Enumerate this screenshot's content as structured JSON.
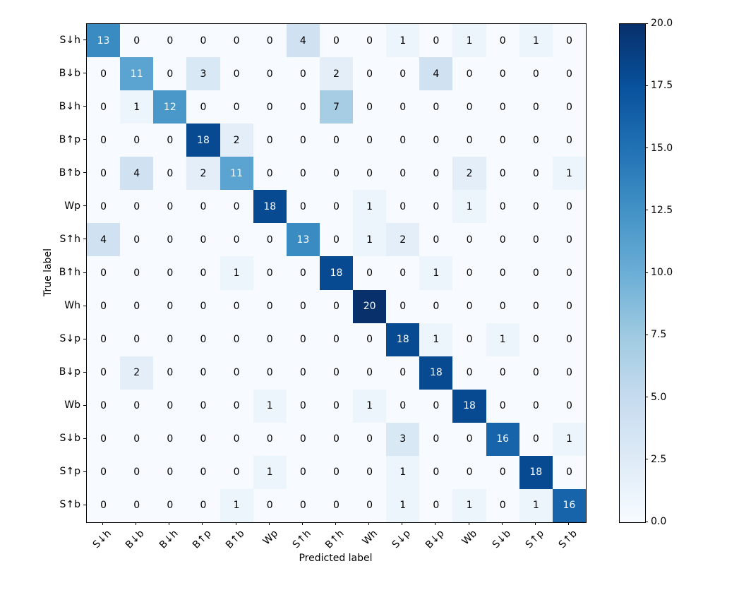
{
  "chart_data": {
    "type": "heatmap",
    "title": "",
    "xlabel": "Predicted label",
    "ylabel": "True label",
    "labels": [
      "S↓h",
      "B↓b",
      "B↓h",
      "B↑p",
      "B↑b",
      "Wp",
      "S↑h",
      "B↑h",
      "Wh",
      "S↓p",
      "B↓p",
      "Wb",
      "S↓b",
      "S↑p",
      "S↑b"
    ],
    "matrix": [
      [
        13,
        0,
        0,
        0,
        0,
        0,
        4,
        0,
        0,
        1,
        0,
        1,
        0,
        1,
        0
      ],
      [
        0,
        11,
        0,
        3,
        0,
        0,
        0,
        2,
        0,
        0,
        4,
        0,
        0,
        0,
        0
      ],
      [
        0,
        1,
        12,
        0,
        0,
        0,
        0,
        7,
        0,
        0,
        0,
        0,
        0,
        0,
        0
      ],
      [
        0,
        0,
        0,
        18,
        2,
        0,
        0,
        0,
        0,
        0,
        0,
        0,
        0,
        0,
        0
      ],
      [
        0,
        4,
        0,
        2,
        11,
        0,
        0,
        0,
        0,
        0,
        0,
        2,
        0,
        0,
        1
      ],
      [
        0,
        0,
        0,
        0,
        0,
        18,
        0,
        0,
        1,
        0,
        0,
        1,
        0,
        0,
        0
      ],
      [
        4,
        0,
        0,
        0,
        0,
        0,
        13,
        0,
        1,
        2,
        0,
        0,
        0,
        0,
        0
      ],
      [
        0,
        0,
        0,
        0,
        1,
        0,
        0,
        18,
        0,
        0,
        1,
        0,
        0,
        0,
        0
      ],
      [
        0,
        0,
        0,
        0,
        0,
        0,
        0,
        0,
        20,
        0,
        0,
        0,
        0,
        0,
        0
      ],
      [
        0,
        0,
        0,
        0,
        0,
        0,
        0,
        0,
        0,
        18,
        1,
        0,
        1,
        0,
        0
      ],
      [
        0,
        2,
        0,
        0,
        0,
        0,
        0,
        0,
        0,
        0,
        18,
        0,
        0,
        0,
        0
      ],
      [
        0,
        0,
        0,
        0,
        0,
        1,
        0,
        0,
        1,
        0,
        0,
        18,
        0,
        0,
        0
      ],
      [
        0,
        0,
        0,
        0,
        0,
        0,
        0,
        0,
        0,
        3,
        0,
        0,
        16,
        0,
        1
      ],
      [
        0,
        0,
        0,
        0,
        0,
        1,
        0,
        0,
        0,
        1,
        0,
        0,
        0,
        18,
        0
      ],
      [
        0,
        0,
        0,
        0,
        1,
        0,
        0,
        0,
        0,
        1,
        0,
        1,
        0,
        1,
        16
      ]
    ],
    "vmin": 0,
    "vmax": 20,
    "colormap": "Blues",
    "legend_position": "right-colorbar",
    "grid": false,
    "colorbar_ticks": [
      "0.0",
      "2.5",
      "5.0",
      "7.5",
      "10.0",
      "12.5",
      "15.0",
      "17.5",
      "20.0"
    ]
  },
  "style": {
    "cmap_stops": [
      {
        "t": 0.0,
        "c": "#f7fbff"
      },
      {
        "t": 0.125,
        "c": "#deebf7"
      },
      {
        "t": 0.25,
        "c": "#c6dbef"
      },
      {
        "t": 0.375,
        "c": "#9ecae1"
      },
      {
        "t": 0.5,
        "c": "#6baed6"
      },
      {
        "t": 0.625,
        "c": "#4292c6"
      },
      {
        "t": 0.75,
        "c": "#2171b5"
      },
      {
        "t": 0.875,
        "c": "#08519c"
      },
      {
        "t": 1.0,
        "c": "#08306b"
      }
    ],
    "text_dark": "#000000",
    "text_light": "#f7fbff",
    "spine_color": "#000000",
    "background": "#ffffff"
  }
}
